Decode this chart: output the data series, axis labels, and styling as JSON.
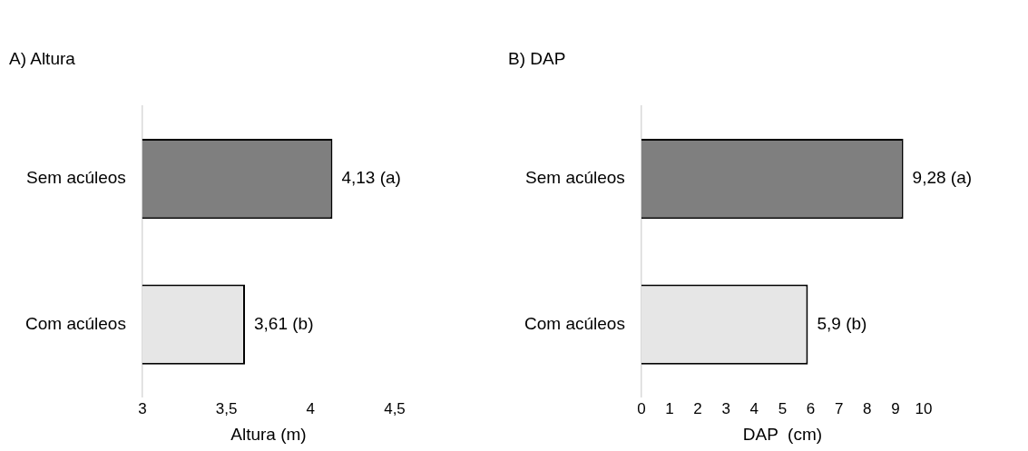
{
  "chart_data": [
    {
      "type": "bar",
      "orientation": "horizontal",
      "title": "A) Altura",
      "xlabel": "Altura (m)",
      "categories": [
        "Sem acúleos",
        "Com acúleos"
      ],
      "values": [
        4.13,
        3.61
      ],
      "colors": [
        "#7f7f7f",
        "#e6e6e6"
      ],
      "value_labels": [
        "4,13 (a)",
        "3,61 (b)"
      ],
      "xlim": [
        3,
        4.5
      ],
      "xticks": [
        3,
        {
          "value": 3.5,
          "label": "3,5"
        },
        4,
        {
          "value": 4.5,
          "label": "4,5"
        }
      ],
      "grid": false,
      "legend": false
    },
    {
      "type": "bar",
      "orientation": "horizontal",
      "title": "B) DAP",
      "xlabel": "DAP  (cm)",
      "categories": [
        "Sem acúleos",
        "Com acúleos"
      ],
      "values": [
        9.28,
        5.9
      ],
      "colors": [
        "#7f7f7f",
        "#e6e6e6"
      ],
      "value_labels": [
        "9,28 (a)",
        "5,9 (b)"
      ],
      "xlim": [
        0,
        10
      ],
      "xticks": [
        0,
        1,
        2,
        3,
        4,
        5,
        6,
        7,
        8,
        9,
        10
      ],
      "grid": false,
      "legend": false
    }
  ]
}
